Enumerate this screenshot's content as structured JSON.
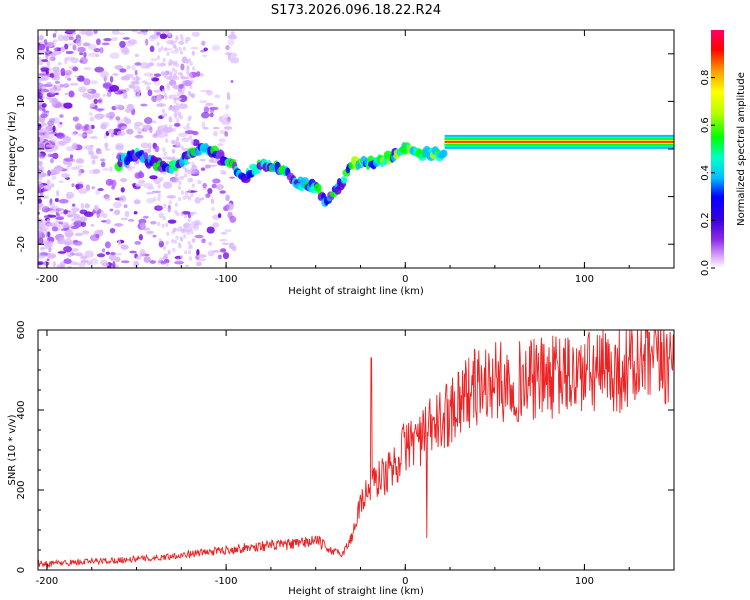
{
  "chart_data": [
    {
      "type": "heatmap",
      "title": "S173.2026.096.18.22.R24",
      "xlabel": "Height of straight line (km)",
      "ylabel": "Frequency (Hz)",
      "xlim": [
        -205,
        150
      ],
      "ylim": [
        -25,
        25
      ],
      "xticks": [
        -200,
        -100,
        0,
        100
      ],
      "yticks": [
        -20,
        -10,
        0,
        10,
        20
      ],
      "colorbar": {
        "label": "Normalized spectral amplitude",
        "range": [
          0.0,
          1.0
        ],
        "ticks": [
          0.0,
          0.2,
          0.4,
          0.6,
          0.8
        ],
        "colors": [
          "#ffffff",
          "#d9a3ff",
          "#8a2be2",
          "#5b00d6",
          "#0000ff",
          "#00bfff",
          "#00ffcc",
          "#00ff00",
          "#b7ff00",
          "#ffff00",
          "#ff9900",
          "#ff0000",
          "#ff0066"
        ]
      },
      "signal_track": {
        "x": [
          -160,
          -150,
          -140,
          -130,
          -120,
          -110,
          -100,
          -90,
          -80,
          -70,
          -60,
          -50,
          -45,
          -40,
          -35,
          -30,
          -20,
          -10,
          0,
          10,
          20,
          25,
          40,
          60,
          80,
          100,
          120,
          150
        ],
        "y": [
          -3,
          -1,
          -3,
          -4,
          -1,
          0,
          -2,
          -6,
          -3,
          -4,
          -7,
          -8,
          -11,
          -9,
          -7,
          -3,
          -3,
          -2,
          0,
          -1,
          -1,
          1.5,
          1.5,
          1.5,
          1.5,
          1.5,
          1.5,
          1.5
        ]
      },
      "band_start_km": 22
    },
    {
      "type": "line",
      "title": "",
      "xlabel": "Height of straight line (km)",
      "ylabel": "SNR (10 * v/v)",
      "xlim": [
        -205,
        150
      ],
      "ylim": [
        0,
        600
      ],
      "xticks": [
        -200,
        -100,
        0,
        100
      ],
      "yticks": [
        0,
        200,
        400,
        600
      ],
      "color": "#ee2222",
      "series": [
        {
          "name": "SNR",
          "x": [
            -205,
            -180,
            -160,
            -140,
            -120,
            -100,
            -80,
            -60,
            -50,
            -45,
            -40,
            -35,
            -30,
            -25,
            -20,
            -15,
            -10,
            -5,
            0,
            5,
            10,
            15,
            20,
            30,
            40,
            50,
            60,
            80,
            100,
            120,
            140,
            150
          ],
          "y": [
            15,
            20,
            25,
            30,
            40,
            50,
            60,
            65,
            75,
            60,
            45,
            40,
            80,
            170,
            200,
            230,
            240,
            270,
            310,
            330,
            330,
            360,
            370,
            430,
            460,
            470,
            470,
            480,
            490,
            500,
            520,
            520
          ]
        }
      ],
      "spikes": [
        {
          "x": -19,
          "y": 530
        },
        {
          "x": 12,
          "y": 80
        },
        {
          "x": 146,
          "y": 590
        }
      ]
    }
  ]
}
